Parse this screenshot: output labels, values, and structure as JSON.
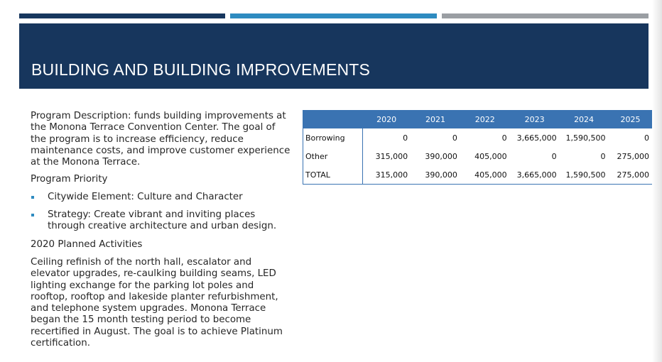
{
  "header": {
    "title": "BUILDING AND BUILDING IMPROVEMENTS",
    "accent_bars": [
      "#17375e",
      "#2e8bc0",
      "#9a9ea3"
    ]
  },
  "content": {
    "description": "Program Description: funds building improvements at the Monona Terrace Convention Center. The goal of the program is to increase efficiency, reduce maintenance costs, and improve customer experience at the Monona Terrace.",
    "priority_heading": "Program Priority",
    "bullets": [
      "Citywide Element: Culture and Character",
      "Strategy: Create vibrant and inviting places through creative architecture and urban design."
    ],
    "planned_heading": "2020 Planned Activities",
    "planned_text": "Ceiling refinish of the north hall, escalator and elevator upgrades, re-caulking building seams, LED lighting exchange for the parking lot poles and rooftop, rooftop and lakeside planter refurbishment, and telephone system upgrades. Monona Terrace began the 15 month testing period to become recertified in August. The goal is to achieve Platinum certification."
  },
  "table": {
    "header_color": "#3a73b2",
    "years": [
      "2020",
      "2021",
      "2022",
      "2023",
      "2024",
      "2025"
    ],
    "rows": [
      {
        "label": "Borrowing",
        "values": [
          "0",
          "0",
          "0",
          "3,665,000",
          "1,590,500",
          "0"
        ]
      },
      {
        "label": "Other",
        "values": [
          "315,000",
          "390,000",
          "405,000",
          "0",
          "0",
          "275,000"
        ]
      },
      {
        "label": "TOTAL",
        "values": [
          "315,000",
          "390,000",
          "405,000",
          "3,665,000",
          "1,590,500",
          "275,000"
        ]
      }
    ]
  }
}
